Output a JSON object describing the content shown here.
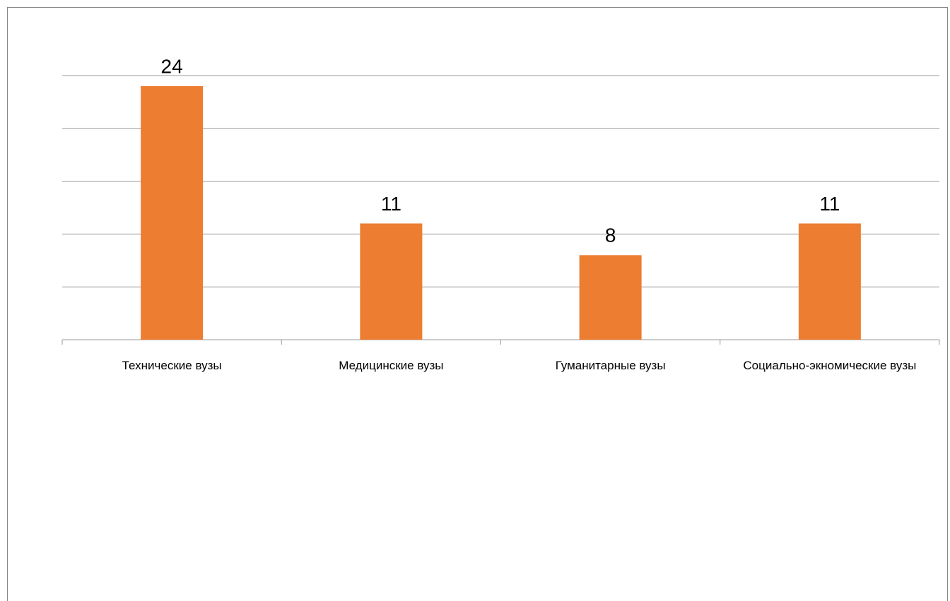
{
  "chart_data": {
    "type": "bar",
    "categories": [
      "Технические вузы",
      "Медицинские вузы",
      "Гуманитарные вузы",
      "Социально-экномические вузы"
    ],
    "values": [
      24,
      11,
      8,
      11
    ],
    "color": "#ed7d31",
    "ylim": [
      0,
      25
    ],
    "yticks": [
      0,
      5,
      10,
      15,
      20,
      25
    ],
    "grid": true
  }
}
